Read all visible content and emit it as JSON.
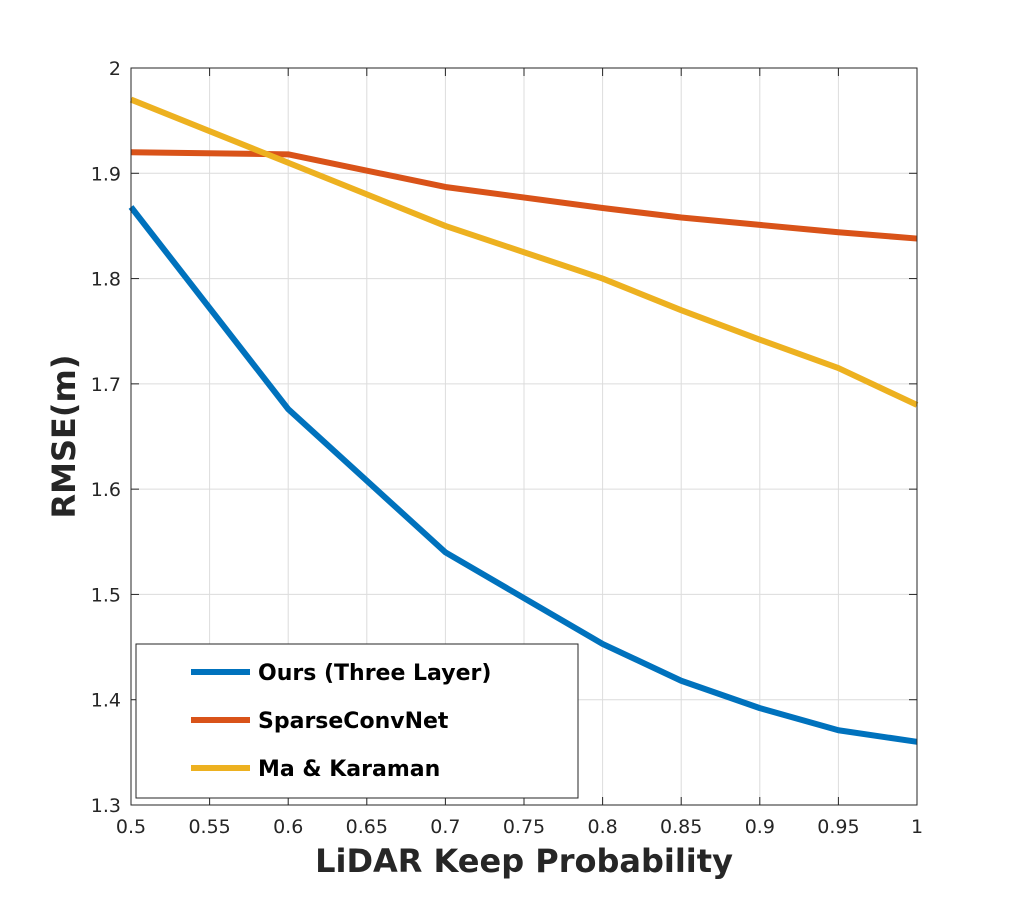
{
  "chart_data": {
    "type": "line",
    "title": "",
    "xlabel": "LiDAR Keep Probability",
    "ylabel": "RMSE(m)",
    "xlim": [
      0.5,
      1
    ],
    "ylim": [
      1.3,
      2
    ],
    "xticks": [
      "0.5",
      "0.55",
      "0.6",
      "0.65",
      "0.7",
      "0.75",
      "0.8",
      "0.85",
      "0.9",
      "0.95",
      "1"
    ],
    "yticks": [
      "1.3",
      "1.4",
      "1.5",
      "1.6",
      "1.7",
      "1.8",
      "1.9",
      "2"
    ],
    "grid": true,
    "legend_position": "bottom-left",
    "x": [
      0.5,
      0.6,
      0.7,
      0.8,
      0.85,
      0.9,
      0.95,
      1.0
    ],
    "series": [
      {
        "name": "Ours (Three Layer)",
        "color": "#0072BD",
        "values": [
          1.868,
          1.676,
          1.54,
          1.453,
          1.418,
          1.392,
          1.371,
          1.36
        ]
      },
      {
        "name": "SparseConvNet",
        "color": "#D95319",
        "values": [
          1.92,
          1.918,
          1.887,
          1.867,
          1.858,
          1.851,
          1.844,
          1.838
        ]
      },
      {
        "name": "Ma & Karaman",
        "color": "#EDB120",
        "values": [
          1.97,
          1.91,
          1.85,
          1.8,
          1.77,
          1.742,
          1.715,
          1.68
        ]
      }
    ]
  }
}
